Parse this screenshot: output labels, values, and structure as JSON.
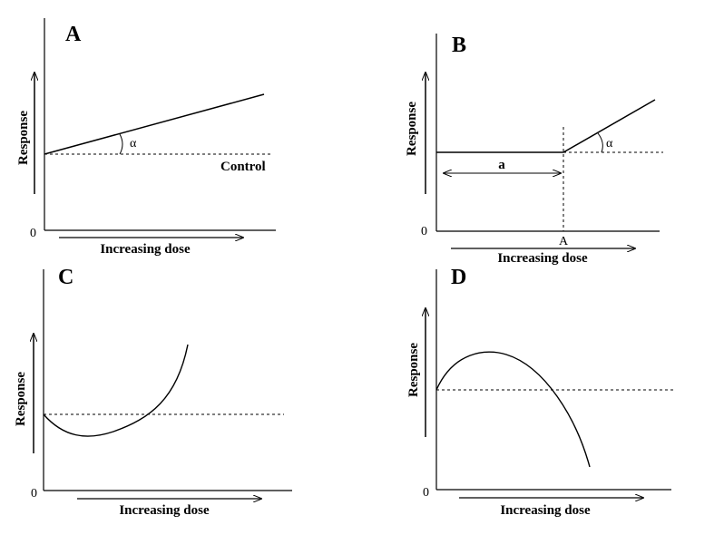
{
  "panels": {
    "a": {
      "letter": "A",
      "ylabel": "Response",
      "xlabel": "Increasing dose",
      "zero": "0",
      "angle": "α",
      "control": "Control"
    },
    "b": {
      "letter": "B",
      "ylabel": "Response",
      "xlabel": "Increasing dose",
      "zero": "0",
      "angle": "α",
      "threshold_span": "a",
      "threshold_point": "A"
    },
    "c": {
      "letter": "C",
      "ylabel": "Response",
      "xlabel": "Increasing dose",
      "zero": "0"
    },
    "d": {
      "letter": "D",
      "ylabel": "Response",
      "xlabel": "Increasing dose",
      "zero": "0"
    }
  }
}
